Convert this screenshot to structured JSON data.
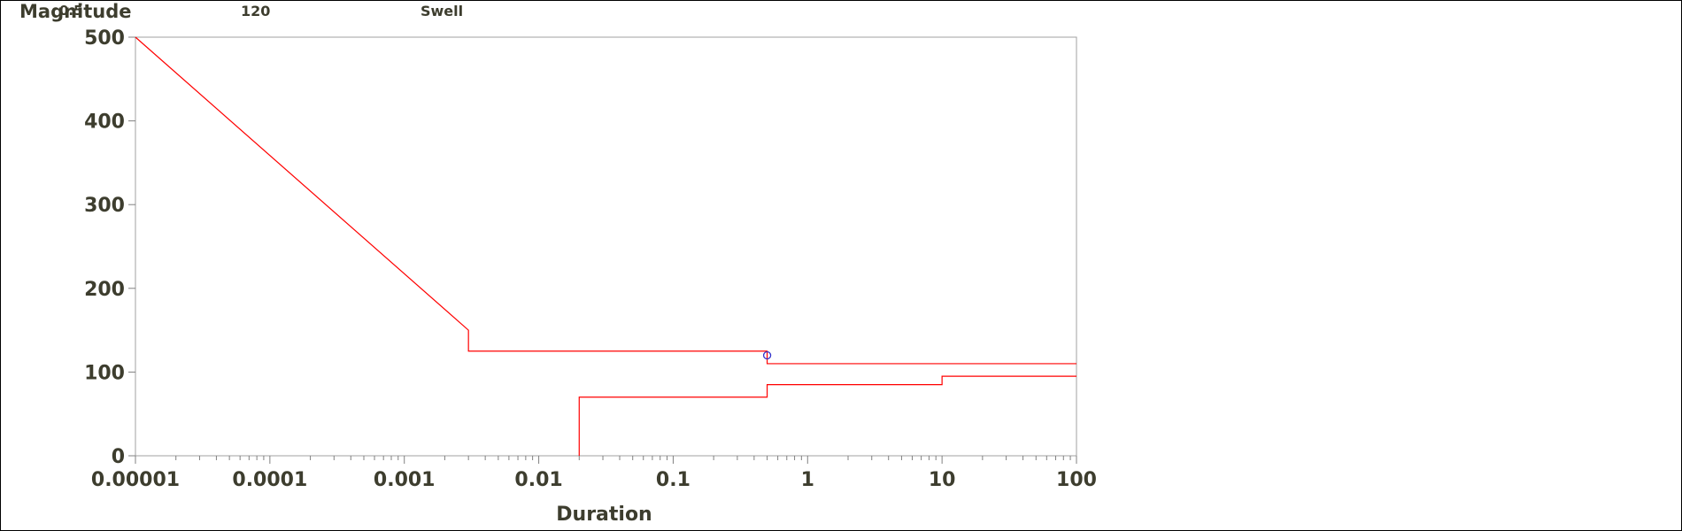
{
  "header": {
    "ylabel": "Magnitude",
    "value_a": "0.5",
    "value_b": "120",
    "event_type": "Swell"
  },
  "chart_data": {
    "type": "line",
    "title": "",
    "xlabel": "Duration",
    "ylabel": "Magnitude",
    "xscale": "log",
    "xlim": [
      1e-05,
      100
    ],
    "ylim": [
      0,
      500
    ],
    "x_ticks": [
      1e-05,
      0.0001,
      0.001,
      0.01,
      0.1,
      1,
      10,
      100
    ],
    "x_tick_labels": [
      "0.00001",
      "0.0001",
      "0.001",
      "0.01",
      "0.1",
      "1",
      "10",
      "100"
    ],
    "y_ticks": [
      0,
      100,
      200,
      300,
      400,
      500
    ],
    "y_tick_labels": [
      "0",
      "100",
      "200",
      "300",
      "400",
      "500"
    ],
    "grid": false,
    "series": [
      {
        "color": "#ff0000",
        "x": [
          1e-05,
          0.003,
          0.003,
          0.5,
          0.5,
          100
        ],
        "y": [
          500,
          150,
          125,
          125,
          110,
          110
        ]
      },
      {
        "color": "#ff0000",
        "x": [
          0.02,
          0.02,
          0.5,
          0.5,
          10,
          10,
          100
        ],
        "y": [
          0,
          70,
          70,
          85,
          85,
          95,
          95
        ]
      }
    ],
    "points": [
      {
        "x": 0.5,
        "y": 120,
        "marker": "circle",
        "color": "#3333cc"
      }
    ]
  }
}
